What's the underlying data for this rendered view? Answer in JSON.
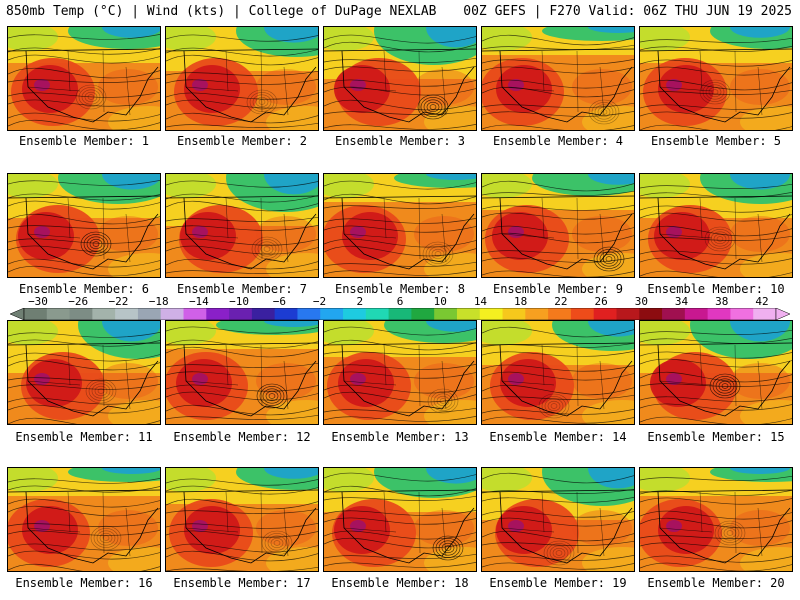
{
  "header": {
    "title_left": "850mb Temp (°C) | Wind (kts) | College of DuPage NEXLAB",
    "title_right": "00Z GEFS | F270 Valid: 06Z THU JUN 19 2025"
  },
  "members": [
    {
      "label": "Ensemble Member: 1"
    },
    {
      "label": "Ensemble Member: 2"
    },
    {
      "label": "Ensemble Member: 3"
    },
    {
      "label": "Ensemble Member: 4"
    },
    {
      "label": "Ensemble Member: 5"
    },
    {
      "label": "Ensemble Member: 6"
    },
    {
      "label": "Ensemble Member: 7"
    },
    {
      "label": "Ensemble Member: 8"
    },
    {
      "label": "Ensemble Member: 9"
    },
    {
      "label": "Ensemble Member: 10"
    },
    {
      "label": "Ensemble Member: 11"
    },
    {
      "label": "Ensemble Member: 12"
    },
    {
      "label": "Ensemble Member: 13"
    },
    {
      "label": "Ensemble Member: 14"
    },
    {
      "label": "Ensemble Member: 15"
    },
    {
      "label": "Ensemble Member: 16"
    },
    {
      "label": "Ensemble Member: 17"
    },
    {
      "label": "Ensemble Member: 18"
    },
    {
      "label": "Ensemble Member: 19"
    },
    {
      "label": "Ensemble Member: 20"
    }
  ],
  "colorbar": {
    "labels": [
      "−30",
      "−26",
      "−22",
      "−18",
      "−14",
      "−10",
      "−6",
      "−2",
      "2",
      "6",
      "10",
      "14",
      "18",
      "22",
      "26",
      "30",
      "34",
      "38",
      "42"
    ],
    "colors": [
      "#6f7f73",
      "#8a9a8e",
      "#7d8d85",
      "#a3b3ab",
      "#b7c4c7",
      "#9aa6b4",
      "#cfb0e6",
      "#d060e8",
      "#8a20c8",
      "#6a20b0",
      "#3a20a0",
      "#1c3cd2",
      "#2878f0",
      "#22a6f0",
      "#1ecbe0",
      "#20d8b4",
      "#18b878",
      "#20a840",
      "#7ac832",
      "#c8e02a",
      "#f4f020",
      "#f6c81c",
      "#f7a020",
      "#f47a1c",
      "#ee4c1a",
      "#e02020",
      "#b8181c",
      "#8c0c10",
      "#a01050",
      "#c81890",
      "#e038c0",
      "#f070e0",
      "#f0b0f0"
    ]
  },
  "palette": {
    "cold": "#1a9fd8",
    "cool": "#28c070",
    "mild": "#b8e030",
    "warm": "#f6d020",
    "hot": "#f08a1c",
    "veryhot": "#e84a1a",
    "extreme": "#d01818",
    "peak": "#9c1070"
  }
}
